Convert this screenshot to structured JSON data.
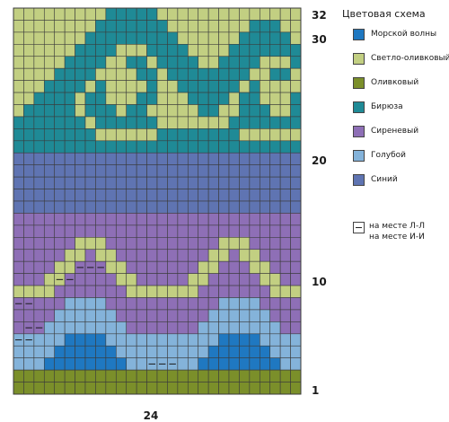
{
  "legend": {
    "title": "Цветовая схема",
    "items": [
      {
        "key": "M",
        "label": "Морской волны",
        "color": "#1f78c1"
      },
      {
        "key": "L",
        "label": "Светло-оливковый",
        "color": "#c2cf82"
      },
      {
        "key": "O",
        "label": "Оливковый",
        "color": "#7b8f2a"
      },
      {
        "key": "T",
        "label": "Бирюза",
        "color": "#1f8a96"
      },
      {
        "key": "S",
        "label": "Сиреневый",
        "color": "#8e6fb6"
      },
      {
        "key": "G",
        "label": "Голубой",
        "color": "#84b3da"
      },
      {
        "key": "B",
        "label": "Синий",
        "color": "#5f74b2"
      }
    ],
    "dash_line1": "на месте Л-Л",
    "dash_line2": "на месте И-И"
  },
  "row_numbers": [
    "32",
    "30",
    "20",
    "10",
    "1"
  ],
  "column_number": "24",
  "grid_lines": "#3b3b3b",
  "dash_mark_color": "#1a1a1a",
  "chart_data": {
    "type": "knitting-chart",
    "columns": 28,
    "rows": 32,
    "rows_top_to_bottom": [
      "LLLLLLLLLTTTTTLLLLLLLLLLLLLL",
      "LLLLLLLLTTTTTTTLLLLLLLLTTTLL",
      "LLLLLLLTTTTTTTTTLLLLLLTTTTTL",
      "LLLLLLTTTTLLLTTTTLLLLTTTTTTT",
      "LLLLLTTTTLLTTLTTTTLLTTTTLLLT",
      "LLLLTTTTLLLLTTLTTTTTTTTLLTTL",
      "LLLTTTTLTLLLLTLLTTTTTTLTLLLL",
      "LLTTTTLTTLLLTTLLLTTTTLTTLLLT",
      "LTTTTTLTTTLTTLLLLLTTLLTTTLLT",
      "TTTTTTTLTTTTTTLLLLLLLTTTTTTT",
      "TTTTTTTTLLLLLLTTTTTTTTLLLLLL",
      "TTTTTTTTTTTTTTTTTTTTTTTTTTTT",
      "BBBBBBBBBBBBBBBBBBBBBBBBBBBB",
      "BBBBBBBBBBBBBBBBBBBBBBBBBBBB",
      "BBBBBBBBBBBBBBBBBBBBBBBBBBBB",
      "BBBBBBBBBBBBBBBBBBBBBBBBBBBB",
      "BBBBBBBBBBBBBBBBBBBBBBBBBBBB",
      "SSSSSSSSSSSSSSSSSSSSSSSSSSSS",
      "SSSSSSSSSSSSSSSSSSSSSSSSSSSS",
      "SSSSSSLLLSSSSSSSSSSSLLLSSSSS",
      "SSSSSLLSLLSSSSSSSSSLLSLLSSSS",
      "SSSSLLSSSLLSSSSSSSLLSSSLLSSS",
      "SSSLLSSSSSLLSSSSSLLSSSSSLLSS",
      "LLLLSSSSSSSLLLLLLLSSSSSSSLLL",
      "SSSSSGGGGSSSSSSSSSSSGGGGSSSS",
      "SSSSGGGGGGSSSSSSSSSGGGGGGSSS",
      "SSSGGGGGGGGSSSSSSSGGGGGGGGSS",
      "GGGGGMMMMGGGGGGGGGGGMMMMGGGG",
      "GGGGMMMMMMGGGGGGGGGMMMMMMGGG",
      "GGGMMMMMMMMGGGGGGGMMMMMMMMGG",
      "OOOOOOOOOOOOOOOOOOOOOOOOOOOO",
      "OOOOOOOOOOOOOOOOOOOOOOOOOOOO"
    ],
    "dash_marks_top_to_bottom": [
      [],
      [],
      [],
      [],
      [],
      [],
      [],
      [],
      [],
      [],
      [],
      [],
      [],
      [],
      [],
      [],
      [],
      [],
      [],
      [],
      [],
      [
        6,
        7,
        8
      ],
      [
        4,
        5
      ],
      [],
      [
        0,
        1
      ],
      [],
      [
        1,
        2
      ],
      [
        0,
        1
      ],
      [],
      [
        13,
        14,
        15
      ],
      [],
      []
    ]
  }
}
